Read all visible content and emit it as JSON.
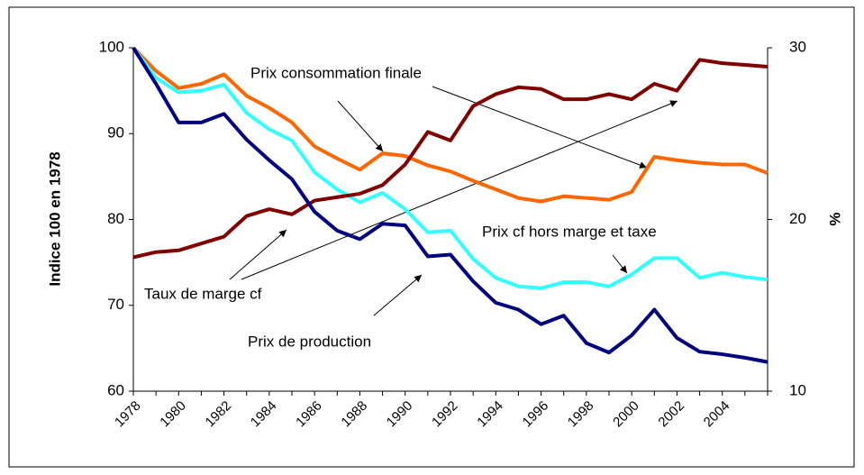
{
  "chart_data": {
    "type": "line",
    "x": [
      "1978",
      null,
      "1980",
      null,
      "1982",
      null,
      "1984",
      null,
      "1986",
      null,
      "1988",
      null,
      "1990",
      null,
      "1992",
      null,
      "1994",
      null,
      "1996",
      null,
      "1998",
      null,
      "2000",
      null,
      "2002",
      null,
      "2004",
      null,
      null
    ],
    "ylabel": "Indice 100 en 1978",
    "y2label": "%",
    "ylim": [
      60,
      100
    ],
    "yticks": [
      60,
      70,
      80,
      90,
      100
    ],
    "y2lim": [
      10,
      30
    ],
    "y2ticks": [
      10,
      20,
      30
    ],
    "series": [
      {
        "name": "Prix consommation finale",
        "color": "#ff6600",
        "values": [
          100,
          97.3,
          95.3,
          95.8,
          96.9,
          94.4,
          93.0,
          91.3,
          88.5,
          87.1,
          85.8,
          87.7,
          87.4,
          86.3,
          85.6,
          84.5,
          83.5,
          82.5,
          82.1,
          82.7,
          82.5,
          82.3,
          83.2,
          87.3,
          86.9,
          86.6,
          86.4,
          86.4,
          85.4
        ]
      },
      {
        "name": "Prix cf hors marge et taxe",
        "color": "#33ffff",
        "values": [
          100,
          96.5,
          94.8,
          95.0,
          95.7,
          92.4,
          90.5,
          89.2,
          85.5,
          83.5,
          82.0,
          83.1,
          81.2,
          78.5,
          78.7,
          75.4,
          73.2,
          72.2,
          72.0,
          72.7,
          72.7,
          72.2,
          73.6,
          75.5,
          75.5,
          73.2,
          73.8,
          73.3,
          73.0
        ]
      },
      {
        "name": "Taux de marge cf",
        "color": "#800000",
        "axis": "y2",
        "values": [
          17.8,
          18.1,
          18.2,
          18.6,
          19.0,
          20.2,
          20.6,
          20.3,
          21.1,
          21.3,
          21.5,
          22.0,
          23.2,
          25.1,
          24.6,
          26.6,
          27.3,
          27.7,
          27.6,
          27.0,
          27.0,
          27.3,
          27.0,
          27.9,
          27.5,
          29.3,
          29.1,
          29.0,
          28.9
        ]
      },
      {
        "name": "Prix de production",
        "color": "#000080",
        "values": [
          100,
          95.8,
          91.3,
          91.3,
          92.3,
          89.3,
          86.9,
          84.7,
          80.9,
          78.7,
          77.7,
          79.5,
          79.3,
          75.7,
          75.9,
          72.8,
          70.3,
          69.5,
          67.8,
          68.8,
          65.6,
          64.5,
          66.5,
          69.5,
          66.2,
          64.6,
          64.3,
          63.9,
          63.4
        ]
      }
    ]
  }
}
